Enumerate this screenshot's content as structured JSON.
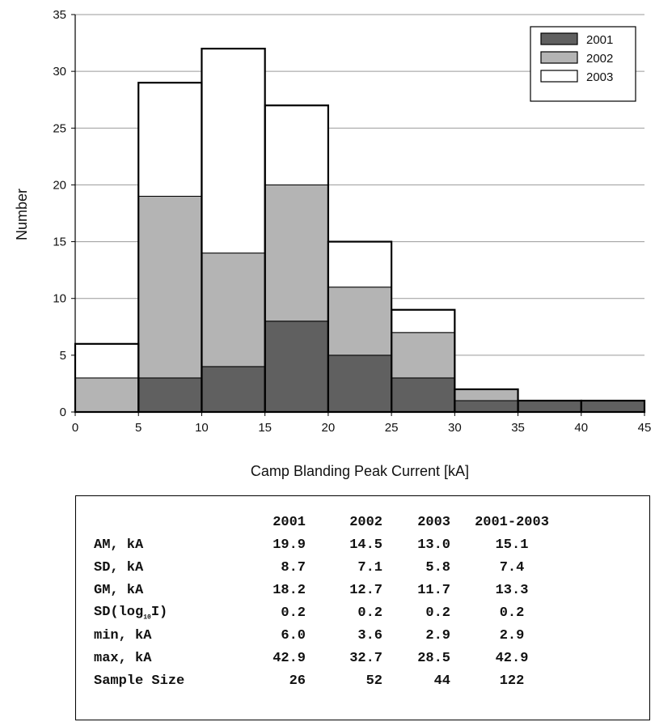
{
  "chart_data": {
    "type": "bar",
    "stacked": true,
    "xlabel": "Camp Blanding Peak Current [kA]",
    "ylabel": "Number",
    "xlim": [
      0,
      45
    ],
    "ylim": [
      0,
      35
    ],
    "x_ticks": [
      "0",
      "5",
      "10",
      "15",
      "20",
      "25",
      "30",
      "35",
      "40",
      "45"
    ],
    "y_ticks": [
      "0",
      "5",
      "10",
      "15",
      "20",
      "25",
      "30",
      "35"
    ],
    "bins": [
      [
        0,
        5
      ],
      [
        5,
        10
      ],
      [
        10,
        15
      ],
      [
        15,
        20
      ],
      [
        20,
        25
      ],
      [
        25,
        30
      ],
      [
        30,
        35
      ],
      [
        35,
        40
      ],
      [
        40,
        45
      ]
    ],
    "series": [
      {
        "name": "2001",
        "color": "#606060",
        "values": [
          0,
          3,
          4,
          8,
          5,
          3,
          1,
          1,
          1
        ]
      },
      {
        "name": "2002",
        "color": "#b4b4b4",
        "values": [
          3,
          16,
          10,
          12,
          6,
          4,
          1,
          0,
          0
        ]
      },
      {
        "name": "2003",
        "color": "#ffffff",
        "values": [
          3,
          10,
          18,
          7,
          4,
          2,
          0,
          0,
          0
        ]
      }
    ],
    "legend_position": "top-right",
    "grid": "horizontal"
  },
  "stats_table": {
    "columns": [
      "2001",
      "2002",
      "2003",
      "2001-2003"
    ],
    "rows": [
      {
        "label": "AM, kA",
        "values": [
          "19.9",
          "14.5",
          "13.0",
          "15.1"
        ]
      },
      {
        "label": "SD, kA",
        "values": [
          "8.7",
          "7.1",
          "5.8",
          "7.4"
        ]
      },
      {
        "label": "GM, kA",
        "values": [
          "18.2",
          "12.7",
          "11.7",
          "13.3"
        ]
      },
      {
        "label": "SD(log",
        "label_sub": "10",
        "label_end": "I)",
        "values": [
          "0.2",
          "0.2",
          "0.2",
          "0.2"
        ]
      },
      {
        "label": "min, kA",
        "values": [
          "6.0",
          "3.6",
          "2.9",
          "2.9"
        ]
      },
      {
        "label": "max, kA",
        "values": [
          "42.9",
          "32.7",
          "28.5",
          "42.9"
        ]
      },
      {
        "label": "Sample Size",
        "values": [
          "26",
          "52",
          "44",
          "122"
        ]
      }
    ]
  }
}
